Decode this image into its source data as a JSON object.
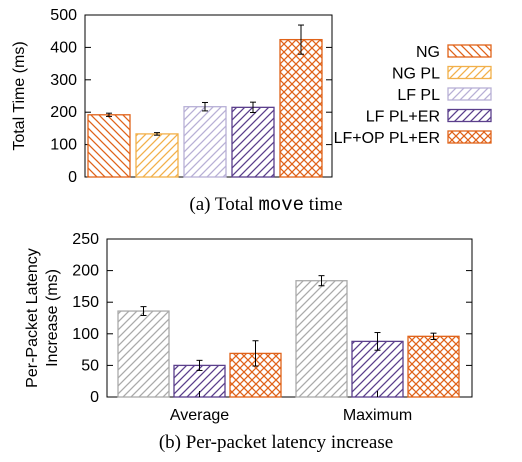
{
  "colors": {
    "NG": "#e0631a",
    "NG PL": "#f2b04a",
    "LF PL": "#b8b0d6",
    "LF PL+ER": "#5b3f8c",
    "LF+OP PL+ER": "#e0631a",
    "Gray PL": "#aaaaaa"
  },
  "chart_data": [
    {
      "type": "bar",
      "ylabel": "Total Time (ms)",
      "ylim": [
        0,
        500
      ],
      "yticks": [
        "0",
        "100",
        "200",
        "300",
        "400",
        "500"
      ],
      "grid": false,
      "legend_position": "right",
      "series": [
        {
          "name": "NG",
          "value": 192,
          "error": 5,
          "pattern": "diag-back",
          "color_key": "NG"
        },
        {
          "name": "NG PL",
          "value": 133,
          "error": 4,
          "pattern": "diag-fwd",
          "color_key": "NG PL"
        },
        {
          "name": "LF PL",
          "value": 217,
          "error": 13,
          "pattern": "diag-fwd",
          "color_key": "LF PL"
        },
        {
          "name": "LF PL+ER",
          "value": 215,
          "error": 16,
          "pattern": "diag-fwd",
          "color_key": "LF PL+ER"
        },
        {
          "name": "LF+OP PL+ER",
          "value": 424,
          "error": 45,
          "pattern": "cross",
          "color_key": "LF+OP PL+ER"
        }
      ],
      "caption": {
        "prefix": "(a) Total ",
        "mono": "move",
        "suffix": " time"
      }
    },
    {
      "type": "bar",
      "ylabel_lines": [
        "Per-Packet Latency",
        "Increase (ms)"
      ],
      "ylim": [
        0,
        250
      ],
      "yticks": [
        "0",
        "50",
        "100",
        "150",
        "200",
        "250"
      ],
      "grid": false,
      "categories": [
        "Average",
        "Maximum"
      ],
      "series": [
        {
          "name": "PL",
          "values": [
            136,
            184
          ],
          "errors": [
            7,
            8
          ],
          "pattern": "diag-fwd",
          "color_key": "Gray PL"
        },
        {
          "name": "LF PL+ER",
          "values": [
            50,
            88
          ],
          "errors": [
            8,
            14
          ],
          "pattern": "diag-fwd",
          "color_key": "LF PL+ER"
        },
        {
          "name": "LF+OP PL+ER",
          "values": [
            69,
            96
          ],
          "errors": [
            20,
            5
          ],
          "pattern": "cross",
          "color_key": "LF+OP PL+ER"
        }
      ],
      "caption": {
        "text": "(b) Per-packet latency increase"
      }
    }
  ]
}
